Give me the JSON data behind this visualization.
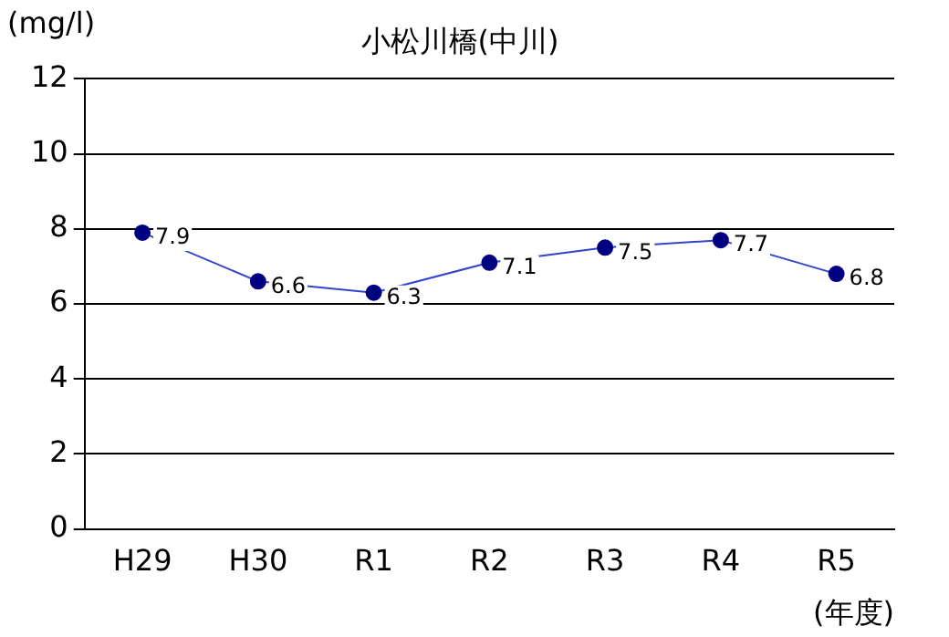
{
  "chart_data": {
    "type": "line",
    "title": "小松川橋(中川)",
    "ylabel": "(mg/l)",
    "xlabel": "(年度)",
    "categories": [
      "H29",
      "H30",
      "R1",
      "R2",
      "R3",
      "R4",
      "R5"
    ],
    "series": [
      {
        "color": "#000080",
        "values": [
          7.9,
          6.6,
          6.3,
          7.1,
          7.5,
          7.7,
          6.8
        ]
      }
    ],
    "ylim": [
      0,
      12
    ],
    "yticks": [
      0,
      2,
      4,
      6,
      8,
      10,
      12
    ],
    "grid": "y",
    "legend": false,
    "marker": "circle",
    "line_style": "solid",
    "data_labels": true
  }
}
